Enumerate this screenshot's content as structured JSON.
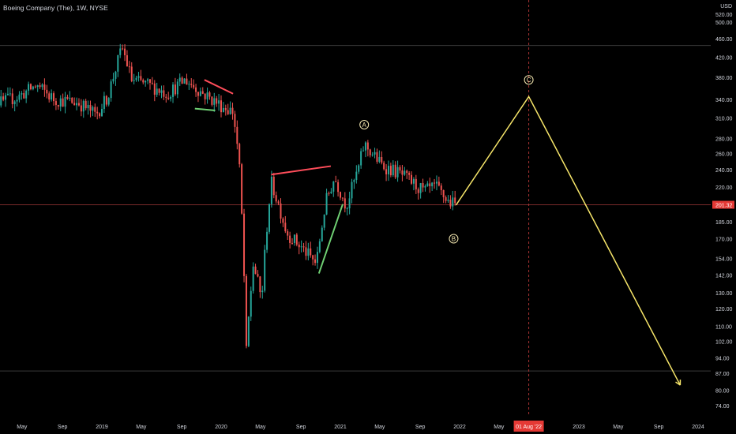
{
  "header": {
    "title": "Boeing Company (The), 1W, NYSE"
  },
  "price_axis": {
    "currency_label": "USD",
    "current_price_label": "201.32",
    "ticks": [
      "520.00",
      "500.00",
      "460.00",
      "420.00",
      "380.00",
      "340.00",
      "310.00",
      "280.00",
      "260.00",
      "240.00",
      "220.00",
      "185.00",
      "170.00",
      "154.00",
      "142.00",
      "130.00",
      "120.00",
      "110.00",
      "102.00",
      "94.00",
      "87.00",
      "80.00",
      "74.00"
    ]
  },
  "time_axis": {
    "labels": [
      "May",
      "Sep",
      "2019",
      "May",
      "Sep",
      "2020",
      "May",
      "Sep",
      "2021",
      "May",
      "Sep",
      "2022",
      "May",
      "2023",
      "May",
      "Sep",
      "2024"
    ],
    "highlight_label": "01 Aug '22"
  },
  "wave_labels": [
    "A",
    "B",
    "C"
  ],
  "colors": {
    "background": "#000000",
    "up_candle": "#26a69a",
    "down_candle": "#ef5350",
    "projection": "#f7e66a",
    "bear_trendline": "#ff4d5a",
    "bull_trendline": "#6fcf73",
    "price_marker": "#e53935",
    "current_price_line": "#7a2a2a",
    "hline": "#3a3a3a",
    "axis_text": "#d1d4dc"
  },
  "chart_data": {
    "type": "candlestick",
    "symbol": "Boeing Company (The)",
    "interval": "1W",
    "exchange": "NYSE",
    "scale": "log",
    "ylim": [
      70,
      540
    ],
    "current_price": 201.32,
    "horizontal_levels": [
      445,
      88
    ],
    "price_path": [
      {
        "t": 2018.0,
        "p": 355
      },
      {
        "t": 2018.15,
        "p": 335
      },
      {
        "t": 2018.3,
        "p": 345
      },
      {
        "t": 2018.45,
        "p": 365
      },
      {
        "t": 2018.6,
        "p": 340
      },
      {
        "t": 2018.8,
        "p": 335
      },
      {
        "t": 2018.95,
        "p": 315
      },
      {
        "t": 2019.05,
        "p": 345
      },
      {
        "t": 2019.17,
        "p": 440
      },
      {
        "t": 2019.25,
        "p": 375
      },
      {
        "t": 2019.4,
        "p": 365
      },
      {
        "t": 2019.55,
        "p": 350
      },
      {
        "t": 2019.7,
        "p": 375
      },
      {
        "t": 2019.85,
        "p": 350
      },
      {
        "t": 2020.0,
        "p": 330
      },
      {
        "t": 2020.1,
        "p": 320
      },
      {
        "t": 2020.15,
        "p": 250
      },
      {
        "t": 2020.21,
        "p": 95
      },
      {
        "t": 2020.27,
        "p": 150
      },
      {
        "t": 2020.34,
        "p": 125
      },
      {
        "t": 2020.42,
        "p": 225
      },
      {
        "t": 2020.55,
        "p": 175
      },
      {
        "t": 2020.7,
        "p": 160
      },
      {
        "t": 2020.8,
        "p": 150
      },
      {
        "t": 2020.88,
        "p": 205
      },
      {
        "t": 2020.95,
        "p": 230
      },
      {
        "t": 2021.05,
        "p": 200
      },
      {
        "t": 2021.15,
        "p": 240
      },
      {
        "t": 2021.2,
        "p": 272
      },
      {
        "t": 2021.35,
        "p": 245
      },
      {
        "t": 2021.5,
        "p": 235
      },
      {
        "t": 2021.6,
        "p": 225
      },
      {
        "t": 2021.7,
        "p": 215
      },
      {
        "t": 2021.8,
        "p": 220
      },
      {
        "t": 2021.9,
        "p": 205
      },
      {
        "t": 2021.97,
        "p": 201
      }
    ],
    "projection": [
      {
        "t": 2021.97,
        "p": 201
      },
      {
        "t": 2022.58,
        "p": 345
      },
      {
        "t": 2023.85,
        "p": 82
      }
    ],
    "wave_points": [
      {
        "label": "A",
        "t": 2021.2,
        "p": 300
      },
      {
        "label": "B",
        "t": 2021.95,
        "p": 170
      },
      {
        "label": "C",
        "t": 2022.58,
        "p": 375
      }
    ],
    "trendlines": [
      {
        "kind": "bear",
        "from": {
          "t": 2019.86,
          "p": 375
        },
        "to": {
          "t": 2020.1,
          "p": 350
        }
      },
      {
        "kind": "bull",
        "from": {
          "t": 2019.78,
          "p": 325
        },
        "to": {
          "t": 2019.95,
          "p": 322
        }
      },
      {
        "kind": "bear",
        "from": {
          "t": 2020.42,
          "p": 234
        },
        "to": {
          "t": 2020.92,
          "p": 244
        }
      },
      {
        "kind": "bull",
        "from": {
          "t": 2020.82,
          "p": 143
        },
        "to": {
          "t": 2021.02,
          "p": 202
        }
      }
    ],
    "highlight_date": {
      "label": "01 Aug '22",
      "t": 2022.58
    }
  }
}
